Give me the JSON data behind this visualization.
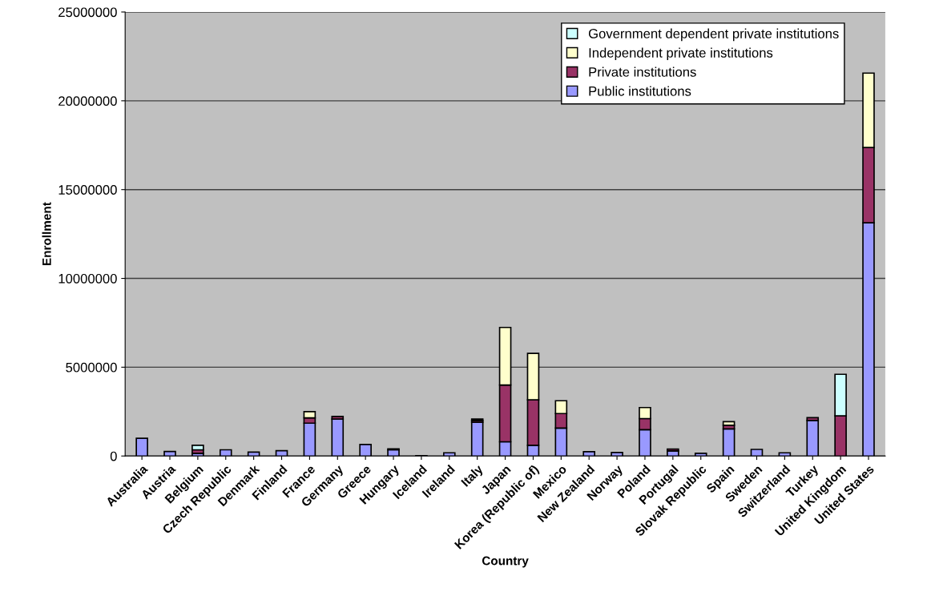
{
  "chart_data": {
    "type": "bar",
    "stacked": true,
    "xlabel": "Country",
    "ylabel": "Enrollment",
    "categories": [
      "Australia",
      "Austria",
      "Belgium",
      "Czech Republic",
      "Denmark",
      "Finland",
      "France",
      "Germany",
      "Greece",
      "Hungary",
      "Iceland",
      "Ireland",
      "Italy",
      "Japan",
      "Korea (Republic of)",
      "Mexico",
      "New Zealand",
      "Norway",
      "Poland",
      "Portugal",
      "Slovak Republic",
      "Spain",
      "Sweden",
      "Switzerland",
      "Turkey",
      "United Kingdom",
      "United States"
    ],
    "series": [
      {
        "name": "Public institutions",
        "color": "#9999ff",
        "values": [
          1000000,
          250000,
          150000,
          350000,
          220000,
          300000,
          1850000,
          2080000,
          650000,
          350000,
          20000,
          180000,
          1900000,
          800000,
          600000,
          1570000,
          240000,
          200000,
          1480000,
          290000,
          150000,
          1530000,
          370000,
          180000,
          2000000,
          null,
          13130000
        ]
      },
      {
        "name": "Private institutions",
        "color": "#993366",
        "values": [
          null,
          null,
          200000,
          null,
          null,
          null,
          300000,
          150000,
          null,
          50000,
          null,
          null,
          100000,
          3200000,
          2560000,
          820000,
          null,
          null,
          630000,
          100000,
          null,
          200000,
          null,
          null,
          160000,
          2260000,
          4240000
        ]
      },
      {
        "name": "Independent private institutions",
        "color": "#ffffcc",
        "values": [
          null,
          null,
          null,
          null,
          null,
          null,
          350000,
          null,
          null,
          null,
          null,
          null,
          80000,
          3240000,
          2620000,
          720000,
          null,
          null,
          620000,
          null,
          null,
          200000,
          null,
          null,
          null,
          null,
          4190000
        ]
      },
      {
        "name": "Government dependent private institutions",
        "color": "#ccffff",
        "values": [
          null,
          null,
          250000,
          null,
          null,
          null,
          null,
          null,
          null,
          null,
          null,
          null,
          null,
          null,
          null,
          null,
          null,
          null,
          null,
          null,
          null,
          null,
          null,
          null,
          null,
          2340000,
          null
        ]
      }
    ],
    "ylim": [
      0,
      25000000
    ],
    "yticks": [
      0,
      5000000,
      10000000,
      15000000,
      20000000,
      25000000
    ],
    "grid": "y",
    "legend": "top right"
  }
}
